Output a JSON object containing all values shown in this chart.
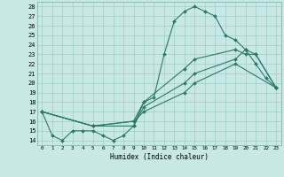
{
  "xlabel": "Humidex (Indice chaleur)",
  "xlim": [
    -0.5,
    23.5
  ],
  "ylim": [
    13.5,
    28.5
  ],
  "xticks": [
    0,
    1,
    2,
    3,
    4,
    5,
    6,
    7,
    8,
    9,
    10,
    11,
    12,
    13,
    14,
    15,
    16,
    17,
    18,
    19,
    20,
    21,
    22,
    23
  ],
  "yticks": [
    14,
    15,
    16,
    17,
    18,
    19,
    20,
    21,
    22,
    23,
    24,
    25,
    26,
    27,
    28
  ],
  "background_color": "#c8e8e4",
  "grid_color": "#9ececa",
  "line_color": "#2a7a68",
  "line1_x": [
    0,
    1,
    2,
    3,
    4,
    5,
    6,
    7,
    8,
    9,
    10,
    11,
    12,
    13,
    14,
    15,
    16,
    17,
    18,
    19,
    20,
    21,
    22,
    23
  ],
  "line1_y": [
    17,
    14.5,
    14,
    15,
    15,
    15,
    14.5,
    14,
    14.5,
    15.5,
    18,
    18.5,
    23,
    26.5,
    27.5,
    28,
    27.5,
    27,
    25,
    24.5,
    23.5,
    22,
    20.5,
    19.5
  ],
  "line2_x": [
    0,
    5,
    9,
    10,
    14,
    15,
    19,
    20,
    21,
    23
  ],
  "line2_y": [
    17,
    15.5,
    15.5,
    17.5,
    20,
    21,
    22.5,
    23.5,
    23,
    19.5
  ],
  "line3_x": [
    0,
    5,
    9,
    10,
    14,
    15,
    19,
    20,
    21,
    23
  ],
  "line3_y": [
    17,
    15.5,
    16,
    18,
    21.5,
    22.5,
    23.5,
    23,
    23,
    19.5
  ],
  "line4_x": [
    0,
    5,
    9,
    10,
    14,
    15,
    19,
    23
  ],
  "line4_y": [
    17,
    15.5,
    16,
    17,
    19,
    20,
    22,
    19.5
  ]
}
